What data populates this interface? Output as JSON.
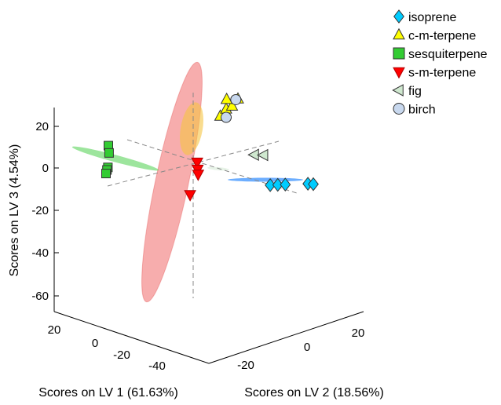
{
  "chart_data": {
    "type": "scatter",
    "projection": "3d",
    "xlabel": "Scores on LV 1 (61.63%)",
    "ylabel": "Scores on LV 2 (18.56%)",
    "zlabel": "Scores on LV 3 (4.54%)",
    "x_ticks": [
      "20",
      "0",
      "-20",
      "-40"
    ],
    "y_ticks": [
      "-20",
      "0",
      "20"
    ],
    "z_ticks": [
      "20",
      "0",
      "-20",
      "-40",
      "-60"
    ],
    "grid": false,
    "legend_position": "top-right",
    "series": [
      {
        "name": "isoprene",
        "marker": "diamond",
        "color": "#00ccff",
        "points": [
          {
            "x": -13,
            "y": 30,
            "z": -4.5
          },
          {
            "x": -15,
            "y": 32,
            "z": -4.5
          },
          {
            "x": -17,
            "y": 34,
            "z": -4.5
          },
          {
            "x": -23,
            "y": 40,
            "z": -4.5
          },
          {
            "x": -24,
            "y": 42,
            "z": -4.5
          }
        ]
      },
      {
        "name": "c-m-terpene",
        "marker": "triangle-up",
        "color": "#ffff00",
        "points": [
          {
            "x": -12,
            "y": 1,
            "z": 21
          },
          {
            "x": -14,
            "y": 2,
            "z": 24
          },
          {
            "x": -16,
            "y": 3,
            "z": 25
          },
          {
            "x": -18,
            "y": 4,
            "z": 28
          },
          {
            "x": -15,
            "y": 1,
            "z": 28
          }
        ]
      },
      {
        "name": "sesquiterpene",
        "marker": "square",
        "color": "#33cc33",
        "points": [
          {
            "x": 12,
            "y": -36,
            "z": 5
          },
          {
            "x": 14,
            "y": -33,
            "z": 3
          },
          {
            "x": 20,
            "y": -26,
            "z": 0
          },
          {
            "x": 22,
            "y": -24,
            "z": 0
          },
          {
            "x": 24,
            "y": -22,
            "z": -0.5
          }
        ]
      },
      {
        "name": "s-m-terpene",
        "marker": "triangle-down",
        "color": "#ff0000",
        "points": [
          {
            "x": -5,
            "y": -4,
            "z": 0
          },
          {
            "x": -6,
            "y": -5,
            "z": -4
          },
          {
            "x": -7,
            "y": -6,
            "z": -7
          },
          {
            "x": -4,
            "y": -7,
            "z": -16
          }
        ]
      },
      {
        "name": "fig",
        "marker": "triangle-left",
        "color": "#cfe8cf",
        "points": [
          {
            "x": -18,
            "y": 14,
            "z": 4
          },
          {
            "x": -20,
            "y": 17,
            "z": 4
          }
        ]
      },
      {
        "name": "birch",
        "marker": "circle",
        "color": "#c8d8ee",
        "points": [
          {
            "x": -17,
            "y": 4,
            "z": 28
          },
          {
            "x": -14,
            "y": 2,
            "z": 20
          }
        ]
      }
    ]
  }
}
